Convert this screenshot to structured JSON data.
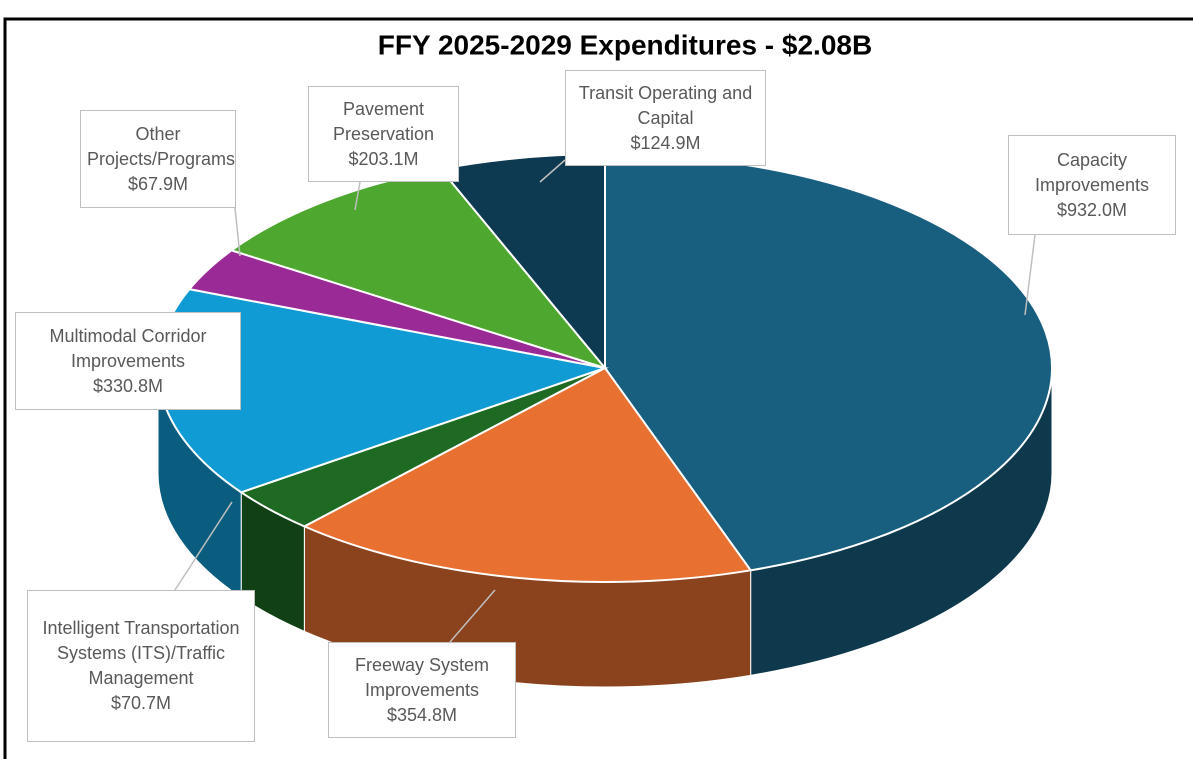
{
  "chart_data": {
    "type": "pie",
    "title": "FFY 2025-2029 Expenditures - $2.08B",
    "categories": [
      "Capacity Improvements",
      "Freeway System Improvements",
      "Intelligent Transportation Systems (ITS)/Traffic Management",
      "Multimodal Corridor Improvements",
      "Other Projects/Programs",
      "Pavement Preservation",
      "Transit Operating and Capital"
    ],
    "values": [
      932.0,
      354.8,
      70.7,
      330.8,
      67.9,
      203.1,
      124.9
    ],
    "value_labels": [
      "$932.0M",
      "$354.8M",
      "$70.7M",
      "$330.8M",
      "$67.9M",
      "$203.1M",
      "$124.9M"
    ],
    "colors": [
      "#175e7f",
      "#e87030",
      "#1e6a23",
      "#119bd4",
      "#9a2b96",
      "#4ea72e",
      "#0d3a50"
    ]
  }
}
